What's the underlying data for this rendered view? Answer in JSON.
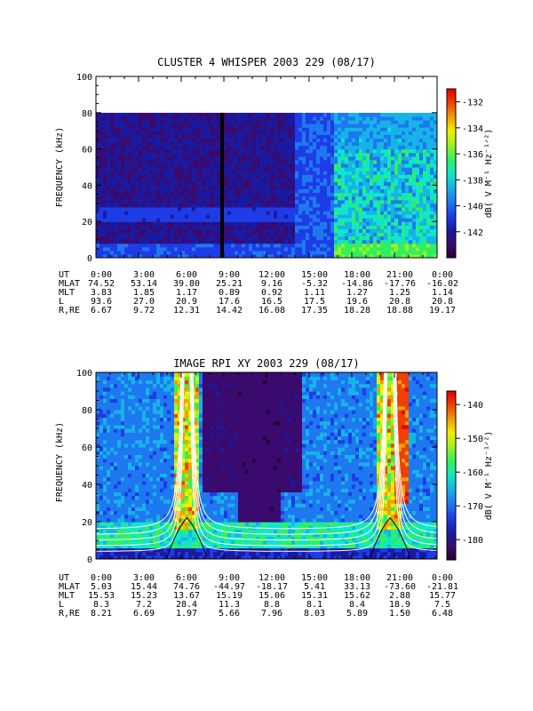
{
  "colors": {
    "background": "#ffffff",
    "axis": "#000000",
    "colormap": [
      "#2a0030",
      "#3a0a6e",
      "#1a1aa0",
      "#1e3ce6",
      "#1e78f0",
      "#16b4e6",
      "#10e6c8",
      "#30f060",
      "#a0f020",
      "#f0f000",
      "#f0a000",
      "#f04000",
      "#e00000"
    ]
  },
  "chart_data": [
    {
      "type": "heatmap",
      "title": "CLUSTER 4 WHISPER 2003 229 (08/17)",
      "xlabel": "",
      "ylabel": "FREQUENCY (kHz)",
      "yticks": [
        "0",
        "20",
        "40",
        "60",
        "80",
        "100"
      ],
      "ylim": [
        0,
        100
      ],
      "data_fmax_khz": 80,
      "xlim_hours": [
        0,
        24
      ],
      "colorbar": {
        "label": "dB( V M⁻¹ Hz⁻¹ᐟ²)",
        "ticks": [
          "-132",
          "-134",
          "-136",
          "-138",
          "-140",
          "-142"
        ],
        "range": [
          -131,
          -144
        ]
      },
      "ephemeris": {
        "rows": [
          {
            "name": "UT",
            "values": [
              "0:00",
              "3:00",
              "6:00",
              "9:00",
              "12:00",
              "15:00",
              "18:00",
              "21:00",
              "0:00"
            ]
          },
          {
            "name": "MLAT",
            "values": [
              "74.52",
              "53.14",
              "39.80",
              "25.21",
              "9.16",
              "-5.32",
              "-14.86",
              "-17.76",
              "-16.02"
            ]
          },
          {
            "name": "MLT",
            "values": [
              "3.83",
              "1.85",
              "1.17",
              "0.89",
              "0.92",
              "1.11",
              "1.27",
              "1.25",
              "1.14"
            ]
          },
          {
            "name": "L",
            "values": [
              "93.6",
              "27.0",
              "20.9",
              "17.6",
              "16.5",
              "17.5",
              "19.6",
              "20.8",
              "20.8"
            ]
          },
          {
            "name": "R,RE",
            "values": [
              "6.67",
              "9.72",
              "12.31",
              "14.42",
              "16.08",
              "17.35",
              "18.28",
              "18.88",
              "19.17"
            ]
          }
        ]
      }
    },
    {
      "type": "heatmap",
      "title": "IMAGE RPI XY 2003 229 (08/17)",
      "xlabel": "",
      "ylabel": "FREQUENCY (kHz)",
      "yticks": [
        "0",
        "20",
        "40",
        "60",
        "80",
        "100"
      ],
      "ylim": [
        0,
        100
      ],
      "xlim_hours": [
        0,
        24
      ],
      "overlay_curve_minima_hours": [
        6.4,
        20.7
      ],
      "colorbar": {
        "label": "dB( V M⁻¹ Hz⁻¹ᐟ²)",
        "ticks": [
          "-140",
          "-150",
          "-160",
          "-170",
          "-180"
        ],
        "range": [
          -136,
          -186
        ]
      },
      "ephemeris": {
        "rows": [
          {
            "name": "UT",
            "values": [
              "0:00",
              "3:00",
              "6:00",
              "9:00",
              "12:00",
              "15:00",
              "18:00",
              "21:00",
              "0:00"
            ]
          },
          {
            "name": "MLAT",
            "values": [
              "5.03",
              "15.44",
              "74.76",
              "-44.97",
              "-18.17",
              "5.41",
              "33.13",
              "-73.60",
              "-21.81"
            ]
          },
          {
            "name": "MLT",
            "values": [
              "15.53",
              "15.23",
              "13.67",
              "15.19",
              "15.06",
              "15.31",
              "15.62",
              "2.88",
              "15.77"
            ]
          },
          {
            "name": "L",
            "values": [
              "8.3",
              "7.2",
              "28.4",
              "11.3",
              "8.8",
              "8.1",
              "8.4",
              "18.9",
              "7.5"
            ]
          },
          {
            "name": "R,RE",
            "values": [
              "8.21",
              "6.69",
              "1.97",
              "5.66",
              "7.96",
              "8.03",
              "5.89",
              "1.50",
              "6.48"
            ]
          }
        ]
      }
    }
  ]
}
